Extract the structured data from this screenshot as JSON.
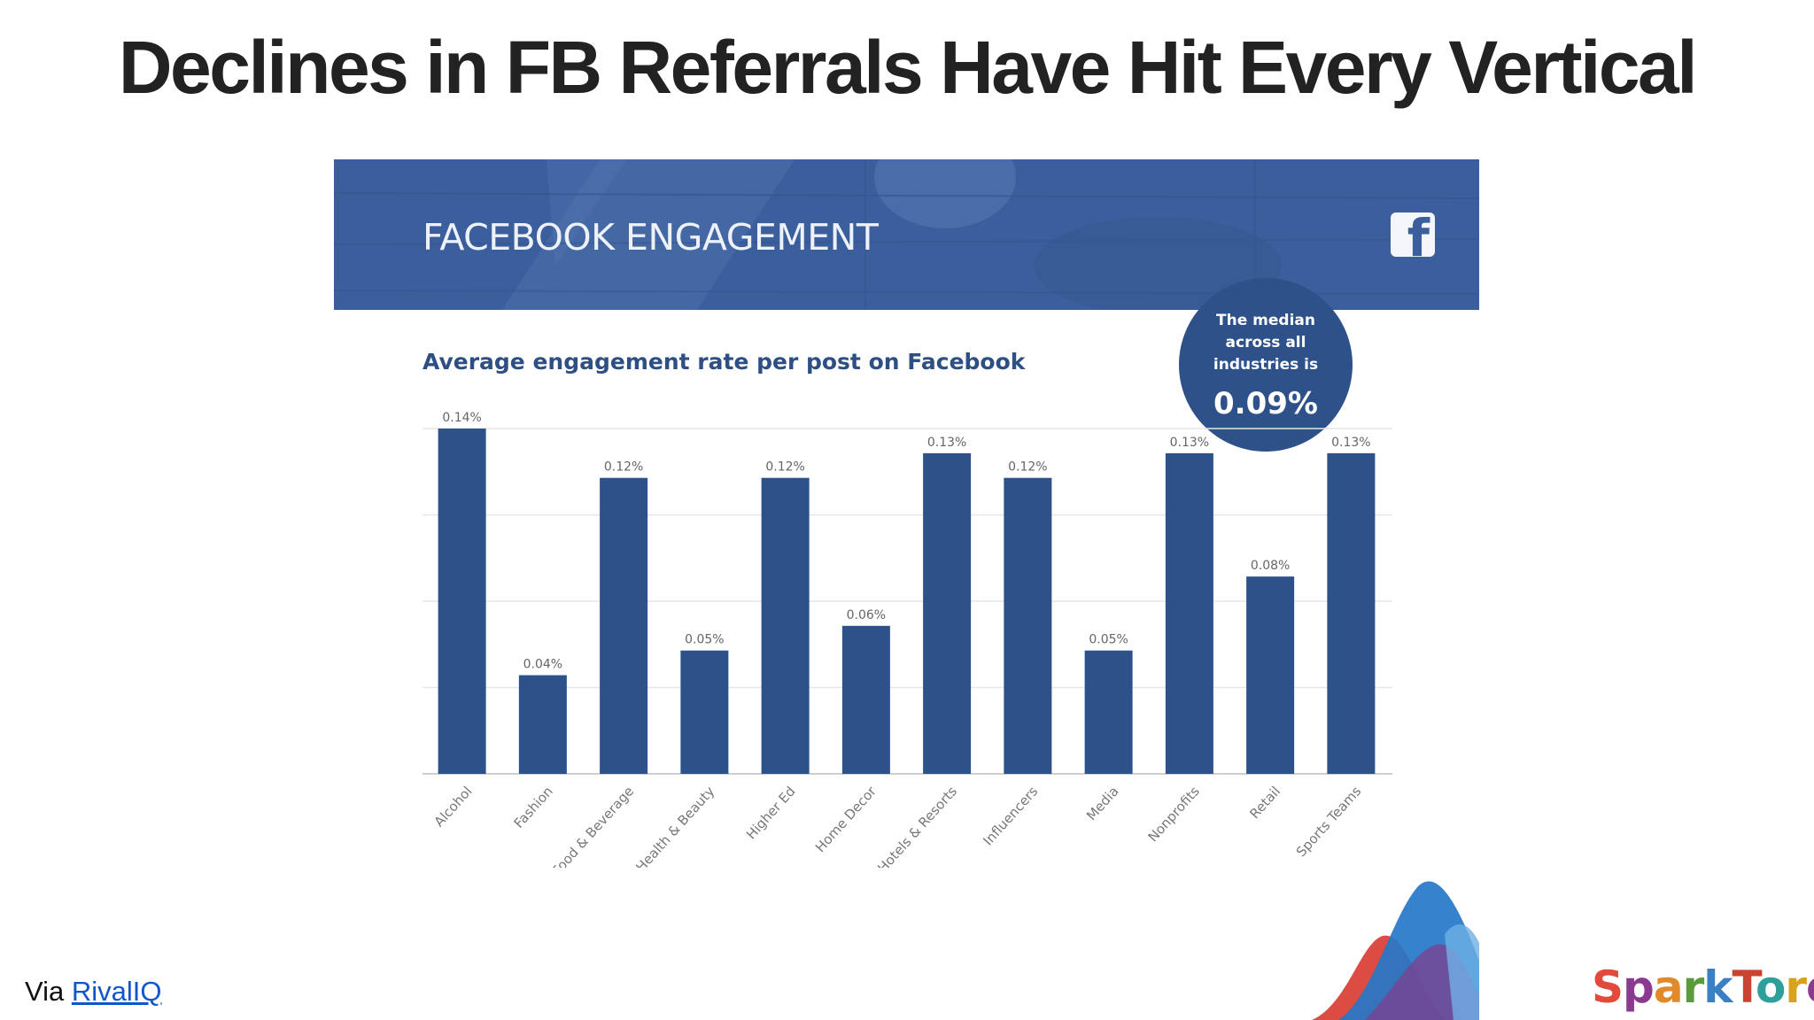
{
  "slide": {
    "title": "Declines in FB Referrals Have Hit Every Vertical",
    "via_prefix": "Via ",
    "via_link": "RivalIQ",
    "brand": "SparkToro"
  },
  "infographic": {
    "banner_title": "FACEBOOK ENGAGEMENT",
    "banner_icon": "facebook-icon",
    "median_label": "The median\nacross all\nindustries is",
    "median_value": "0.09%",
    "subtitle": "Average engagement rate per post on Facebook"
  },
  "colors": {
    "banner": "#3b5f9c",
    "bar": "#2d5189",
    "subtitle": "#2e4f83",
    "title": "#222222",
    "link": "#1155cc"
  },
  "chart_data": {
    "type": "bar",
    "title": "Average engagement rate per post on Facebook",
    "xlabel": "",
    "ylabel": "",
    "categories": [
      "Alcohol",
      "Fashion",
      "Food & Beverage",
      "Health & Beauty",
      "Higher Ed",
      "Home Decor",
      "Hotels & Resorts",
      "Influencers",
      "Media",
      "Nonprofits",
      "Retail",
      "Sports Teams"
    ],
    "values": [
      0.14,
      0.04,
      0.12,
      0.05,
      0.12,
      0.06,
      0.13,
      0.12,
      0.05,
      0.13,
      0.08,
      0.13
    ],
    "data_labels": [
      "0.14%",
      "0.04%",
      "0.12%",
      "0.05%",
      "0.12%",
      "0.06%",
      "0.13%",
      "0.12%",
      "0.05%",
      "0.13%",
      "0.08%",
      "0.13%"
    ],
    "ylim": [
      0,
      0.14
    ],
    "grid": true,
    "legend": "none",
    "x_tick_rotation": "diagonal"
  }
}
